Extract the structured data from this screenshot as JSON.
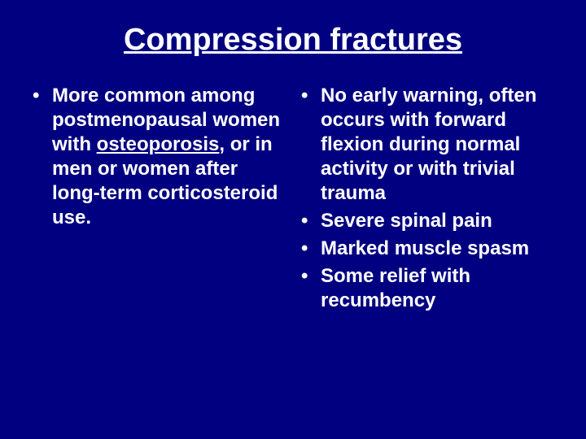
{
  "slide": {
    "title": "Compression fractures",
    "background_color": "#000080",
    "text_color": "#ffffff",
    "title_fontsize": 38,
    "body_fontsize": 24,
    "font_weight": "bold",
    "left_column": {
      "items": [
        {
          "pre": "More common among postmenopausal women with ",
          "underlined": "osteoporosis",
          "post": ", or in men or women after long-term corticosteroid use."
        }
      ]
    },
    "right_column": {
      "items": [
        {
          "text": "No early warning, often occurs with forward flexion during normal activity or with trivial trauma"
        },
        {
          "text": "Severe spinal pain"
        },
        {
          "text": "Marked muscle spasm"
        },
        {
          "text": "Some relief with recumbency"
        }
      ]
    }
  }
}
